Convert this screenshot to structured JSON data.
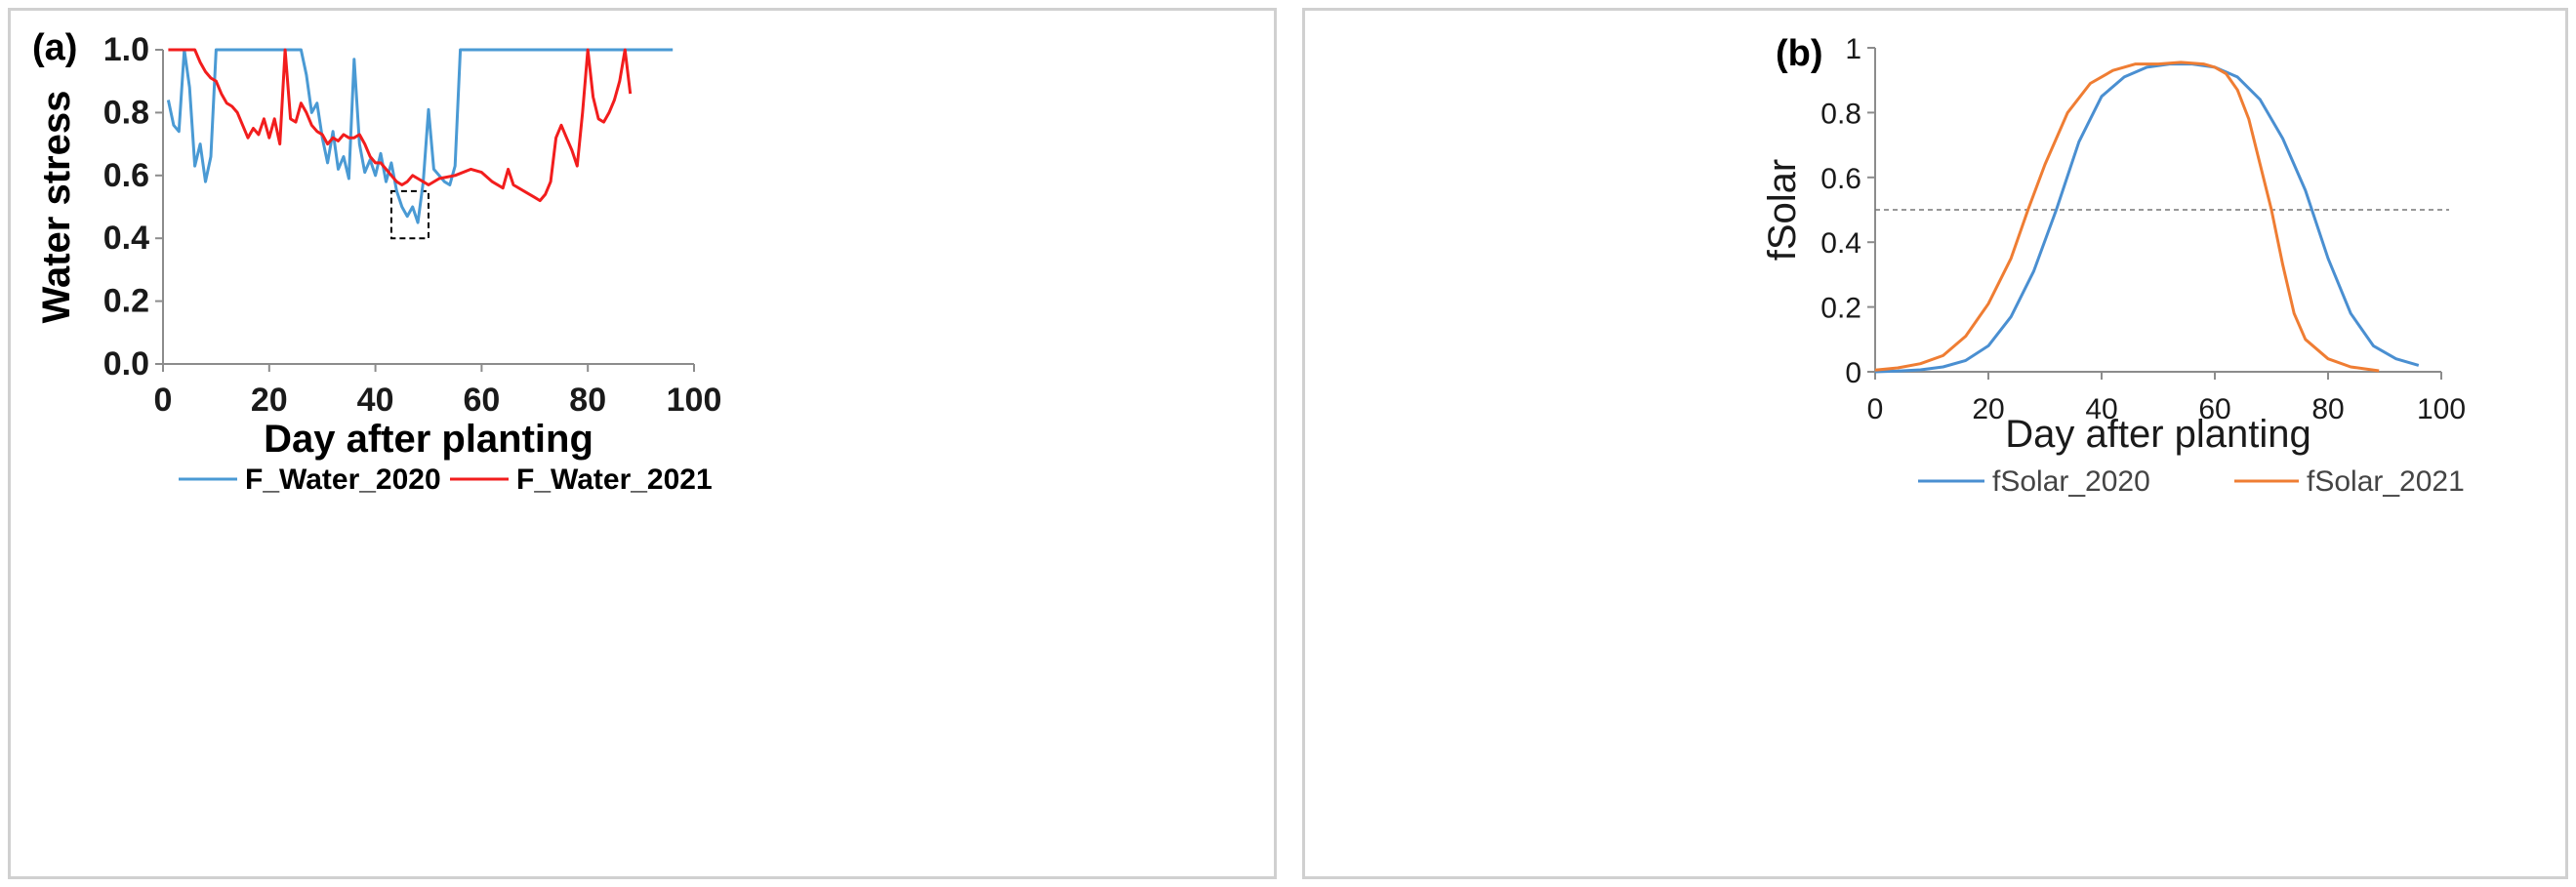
{
  "chart_data": [
    {
      "type": "line",
      "panel_label": "(a)",
      "xlabel": "Day after planting",
      "ylabel": "Water stress",
      "xlim": [
        0,
        100
      ],
      "ylim": [
        0,
        1
      ],
      "x_ticks": [
        "0",
        "20",
        "40",
        "60",
        "80",
        "100"
      ],
      "y_ticks": [
        "0.0",
        "0.2",
        "0.4",
        "0.6",
        "0.8",
        "1.0"
      ],
      "grid": false,
      "legend_position": "bottom",
      "annotation": "dashed box around 2020 minimum near day 43-50",
      "highlight_box": {
        "x": [
          43,
          50
        ],
        "y": [
          0.4,
          0.55
        ]
      },
      "series": [
        {
          "name": "F_Water_2020",
          "color": "#4a9ad4",
          "points": [
            [
              1,
              0.84
            ],
            [
              2,
              0.76
            ],
            [
              3,
              0.74
            ],
            [
              4,
              1.0
            ],
            [
              5,
              0.88
            ],
            [
              6,
              0.63
            ],
            [
              7,
              0.7
            ],
            [
              8,
              0.58
            ],
            [
              9,
              0.66
            ],
            [
              10,
              1.0
            ],
            [
              15,
              1.0
            ],
            [
              20,
              1.0
            ],
            [
              25,
              1.0
            ],
            [
              26,
              1.0
            ],
            [
              27,
              0.92
            ],
            [
              28,
              0.8
            ],
            [
              29,
              0.83
            ],
            [
              30,
              0.72
            ],
            [
              31,
              0.64
            ],
            [
              32,
              0.74
            ],
            [
              33,
              0.62
            ],
            [
              34,
              0.66
            ],
            [
              35,
              0.59
            ],
            [
              36,
              0.97
            ],
            [
              37,
              0.7
            ],
            [
              38,
              0.61
            ],
            [
              39,
              0.65
            ],
            [
              40,
              0.6
            ],
            [
              41,
              0.67
            ],
            [
              42,
              0.58
            ],
            [
              43,
              0.64
            ],
            [
              44,
              0.55
            ],
            [
              45,
              0.5
            ],
            [
              46,
              0.47
            ],
            [
              47,
              0.5
            ],
            [
              48,
              0.45
            ],
            [
              49,
              0.58
            ],
            [
              50,
              0.81
            ],
            [
              51,
              0.62
            ],
            [
              52,
              0.6
            ],
            [
              53,
              0.58
            ],
            [
              54,
              0.57
            ],
            [
              55,
              0.63
            ],
            [
              56,
              1.0
            ],
            [
              60,
              1.0
            ],
            [
              70,
              1.0
            ],
            [
              80,
              1.0
            ],
            [
              90,
              1.0
            ],
            [
              96,
              1.0
            ]
          ]
        },
        {
          "name": "F_Water_2021",
          "color": "#f21d1d",
          "points": [
            [
              1,
              1.0
            ],
            [
              6,
              1.0
            ],
            [
              7,
              0.96
            ],
            [
              8,
              0.93
            ],
            [
              9,
              0.91
            ],
            [
              10,
              0.9
            ],
            [
              11,
              0.86
            ],
            [
              12,
              0.83
            ],
            [
              13,
              0.82
            ],
            [
              14,
              0.8
            ],
            [
              15,
              0.76
            ],
            [
              16,
              0.72
            ],
            [
              17,
              0.75
            ],
            [
              18,
              0.73
            ],
            [
              19,
              0.78
            ],
            [
              20,
              0.72
            ],
            [
              21,
              0.78
            ],
            [
              22,
              0.7
            ],
            [
              23,
              1.0
            ],
            [
              24,
              0.78
            ],
            [
              25,
              0.77
            ],
            [
              26,
              0.83
            ],
            [
              27,
              0.8
            ],
            [
              28,
              0.76
            ],
            [
              29,
              0.74
            ],
            [
              30,
              0.73
            ],
            [
              31,
              0.7
            ],
            [
              32,
              0.72
            ],
            [
              33,
              0.71
            ],
            [
              34,
              0.73
            ],
            [
              35,
              0.72
            ],
            [
              36,
              0.72
            ],
            [
              37,
              0.73
            ],
            [
              38,
              0.7
            ],
            [
              39,
              0.66
            ],
            [
              40,
              0.64
            ],
            [
              41,
              0.64
            ],
            [
              42,
              0.62
            ],
            [
              43,
              0.6
            ],
            [
              44,
              0.58
            ],
            [
              45,
              0.57
            ],
            [
              46,
              0.58
            ],
            [
              47,
              0.6
            ],
            [
              48,
              0.59
            ],
            [
              49,
              0.58
            ],
            [
              50,
              0.57
            ],
            [
              52,
              0.59
            ],
            [
              55,
              0.6
            ],
            [
              58,
              0.62
            ],
            [
              60,
              0.61
            ],
            [
              62,
              0.58
            ],
            [
              64,
              0.56
            ],
            [
              65,
              0.62
            ],
            [
              66,
              0.57
            ],
            [
              68,
              0.55
            ],
            [
              70,
              0.53
            ],
            [
              71,
              0.52
            ],
            [
              72,
              0.54
            ],
            [
              73,
              0.58
            ],
            [
              74,
              0.72
            ],
            [
              75,
              0.76
            ],
            [
              76,
              0.72
            ],
            [
              77,
              0.68
            ],
            [
              78,
              0.63
            ],
            [
              79,
              0.8
            ],
            [
              80,
              1.0
            ],
            [
              81,
              0.85
            ],
            [
              82,
              0.78
            ],
            [
              83,
              0.77
            ],
            [
              84,
              0.8
            ],
            [
              85,
              0.84
            ],
            [
              86,
              0.9
            ],
            [
              87,
              1.0
            ],
            [
              88,
              0.86
            ]
          ]
        }
      ]
    },
    {
      "type": "line",
      "panel_label": "(b)",
      "xlabel": "Day after planting",
      "ylabel": "fSolar",
      "xlim": [
        0,
        100
      ],
      "ylim": [
        0,
        1
      ],
      "x_ticks": [
        "0",
        "20",
        "40",
        "60",
        "80",
        "100"
      ],
      "y_ticks": [
        "0",
        "0.2",
        "0.4",
        "0.6",
        "0.8",
        "1"
      ],
      "grid": false,
      "legend_position": "bottom",
      "reference_line": {
        "y": 0.5,
        "style": "dashed"
      },
      "series": [
        {
          "name": "fSolar_2020",
          "color": "#4a8fd1",
          "points": [
            [
              0,
              0.0
            ],
            [
              4,
              0.002
            ],
            [
              8,
              0.006
            ],
            [
              12,
              0.015
            ],
            [
              16,
              0.035
            ],
            [
              20,
              0.08
            ],
            [
              24,
              0.17
            ],
            [
              28,
              0.31
            ],
            [
              32,
              0.5
            ],
            [
              36,
              0.71
            ],
            [
              40,
              0.85
            ],
            [
              44,
              0.91
            ],
            [
              48,
              0.94
            ],
            [
              52,
              0.95
            ],
            [
              56,
              0.95
            ],
            [
              60,
              0.94
            ],
            [
              64,
              0.91
            ],
            [
              68,
              0.84
            ],
            [
              72,
              0.72
            ],
            [
              76,
              0.56
            ],
            [
              80,
              0.35
            ],
            [
              84,
              0.18
            ],
            [
              88,
              0.08
            ],
            [
              92,
              0.04
            ],
            [
              96,
              0.02
            ]
          ]
        },
        {
          "name": "fSolar_2021",
          "color": "#ef7d33",
          "points": [
            [
              0,
              0.005
            ],
            [
              4,
              0.012
            ],
            [
              8,
              0.025
            ],
            [
              12,
              0.05
            ],
            [
              16,
              0.11
            ],
            [
              20,
              0.21
            ],
            [
              24,
              0.35
            ],
            [
              27,
              0.5
            ],
            [
              30,
              0.64
            ],
            [
              34,
              0.8
            ],
            [
              38,
              0.89
            ],
            [
              42,
              0.93
            ],
            [
              46,
              0.95
            ],
            [
              50,
              0.95
            ],
            [
              54,
              0.955
            ],
            [
              58,
              0.95
            ],
            [
              60,
              0.94
            ],
            [
              62,
              0.92
            ],
            [
              64,
              0.87
            ],
            [
              66,
              0.78
            ],
            [
              68,
              0.64
            ],
            [
              70,
              0.5
            ],
            [
              72,
              0.33
            ],
            [
              74,
              0.18
            ],
            [
              76,
              0.1
            ],
            [
              80,
              0.04
            ],
            [
              84,
              0.015
            ],
            [
              89,
              0.003
            ]
          ]
        }
      ]
    }
  ]
}
